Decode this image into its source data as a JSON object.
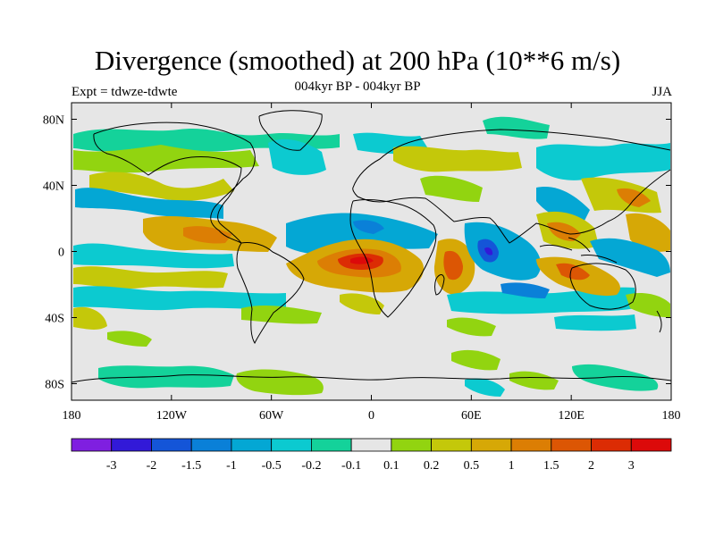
{
  "title": "Divergence (smoothed) at 200 hPa (10**6 m/s)",
  "subtitle": "004kyr BP - 004kyr BP",
  "left_label": "Expt = tdwze-tdwte",
  "right_label": "JJA",
  "map": {
    "type": "filled-contour map",
    "projection": "cylindrical equidistant",
    "variable": "Divergence (smoothed) at 200 hPa",
    "units": "10**6 m/s",
    "lon_range": [
      -180,
      180
    ],
    "lat_range": [
      -90,
      90
    ],
    "x_ticks": [
      {
        "value": -180,
        "label": "180"
      },
      {
        "value": -120,
        "label": "120W"
      },
      {
        "value": -60,
        "label": "60W"
      },
      {
        "value": 0,
        "label": "0"
      },
      {
        "value": 60,
        "label": "60E"
      },
      {
        "value": 120,
        "label": "120E"
      },
      {
        "value": 180,
        "label": "180"
      }
    ],
    "y_ticks": [
      {
        "value": 80,
        "label": "80N"
      },
      {
        "value": 40,
        "label": "40N"
      },
      {
        "value": 0,
        "label": "0"
      },
      {
        "value": -40,
        "label": "40S"
      },
      {
        "value": -80,
        "label": "80S"
      }
    ],
    "background_color": "#e6e6e6",
    "coastline_color": "#000000"
  },
  "colorbar": {
    "colors": [
      "#7f1fe0",
      "#3219d8",
      "#1455d8",
      "#0a80d8",
      "#04a7d4",
      "#0ccad0",
      "#14d29a",
      "#e6e6e6",
      "#92d410",
      "#c4c80a",
      "#d6a806",
      "#dc7e04",
      "#dc5604",
      "#dc2c04",
      "#dc0a0a"
    ],
    "labels": [
      "-3",
      "-2",
      "-1.5",
      "-1",
      "-0.5",
      "-0.2",
      "-0.1",
      "0.1",
      "0.2",
      "0.5",
      "1",
      "1.5",
      "2",
      "3"
    ]
  }
}
